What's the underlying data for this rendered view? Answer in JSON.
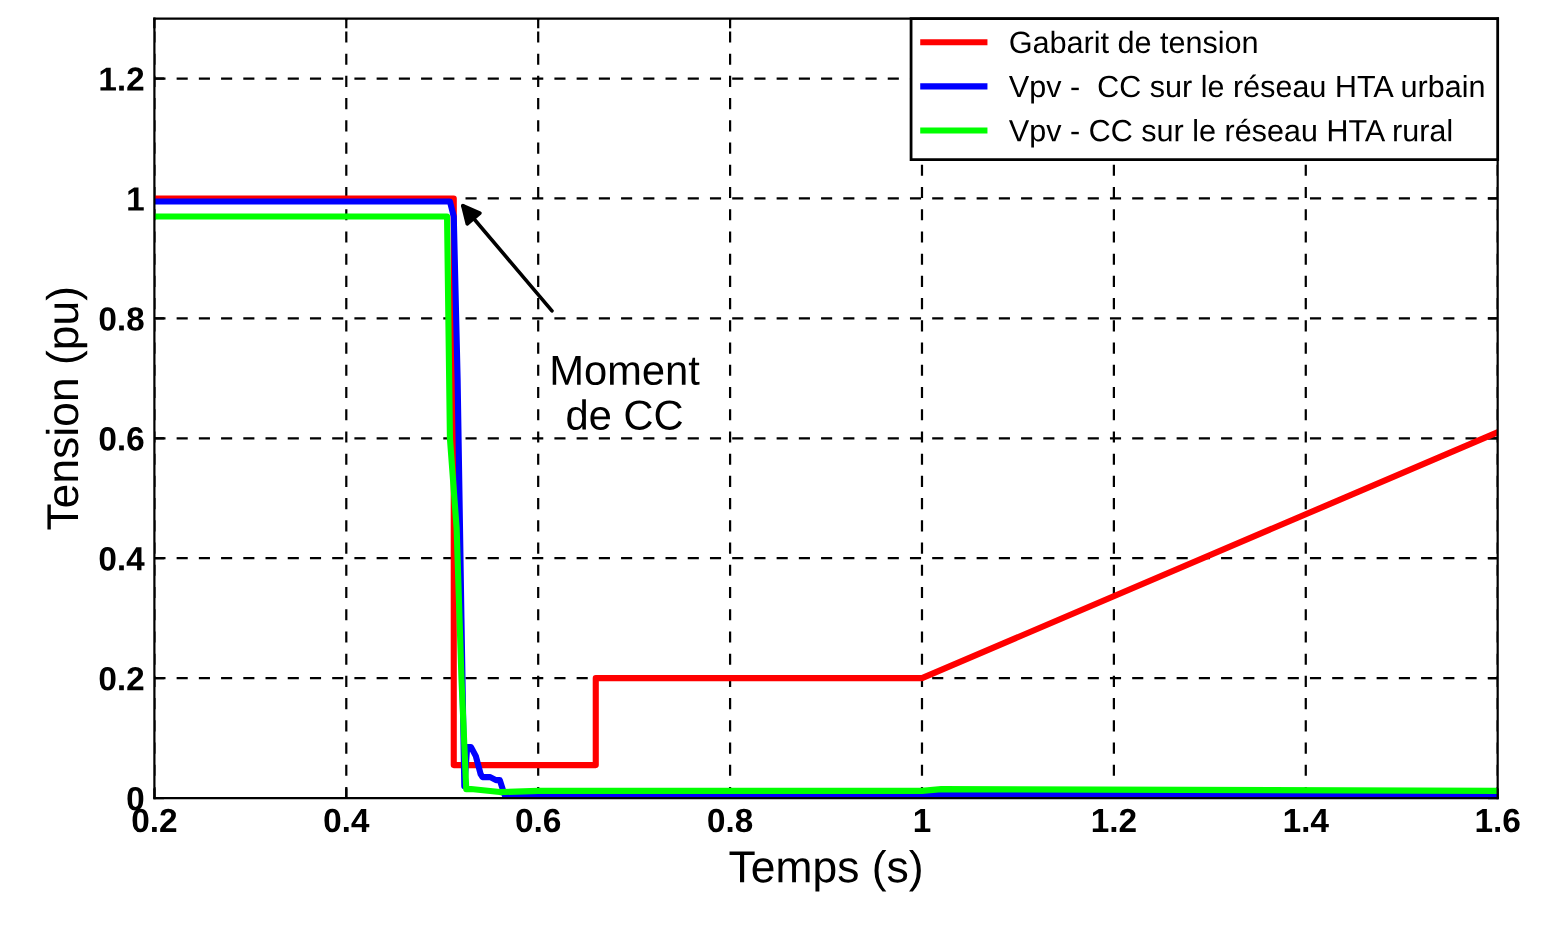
{
  "chart_data": {
    "type": "line",
    "xlabel": "Temps (s)",
    "ylabel": "Tension (pu)",
    "xlim": [
      0.2,
      1.6
    ],
    "ylim": [
      0,
      1.3
    ],
    "xticks": [
      0.2,
      0.4,
      0.6,
      0.8,
      1,
      1.2,
      1.4,
      1.6
    ],
    "yticks": [
      0,
      0.2,
      0.4,
      0.6,
      0.8,
      1,
      1.2
    ],
    "grid": true,
    "legend": "top right",
    "line_style": "solid",
    "marker": "none",
    "series": [
      {
        "name": "Gabarit de tension",
        "color": "#ff0000",
        "x": [
          0.2,
          0.512,
          0.512,
          0.66,
          0.66,
          1.0,
          1.6
        ],
        "values": [
          1,
          1,
          0.055,
          0.055,
          0.2,
          0.2,
          0.61
        ]
      },
      {
        "name": "Vpv -  CC sur le réseau HTA urbain",
        "color": "#0000ff",
        "x": [
          0.2,
          0.508,
          0.512,
          0.516,
          0.52,
          0.523,
          0.526,
          0.53,
          0.535,
          0.54,
          0.542,
          0.55,
          0.556,
          0.56,
          0.565,
          0.6,
          1.0,
          1.6
        ],
        "values": [
          0.995,
          0.995,
          0.97,
          0.7,
          0.3,
          0.02,
          0.085,
          0.085,
          0.07,
          0.04,
          0.035,
          0.035,
          0.03,
          0.03,
          0.005,
          0.005,
          0.005,
          0.005
        ]
      },
      {
        "name": "Vpv - CC sur le réseau HTA rural",
        "color": "#00ff00",
        "x": [
          0.2,
          0.505,
          0.508,
          0.515,
          0.52,
          0.525,
          0.53,
          0.56,
          0.6,
          1.0,
          1.02,
          1.6
        ],
        "values": [
          0.97,
          0.97,
          0.6,
          0.45,
          0.2,
          0.015,
          0.015,
          0.01,
          0.012,
          0.012,
          0.015,
          0.012
        ]
      }
    ],
    "annotations": [
      {
        "text": "Moment\nde CC",
        "x": 0.515,
        "y": 1.0
      }
    ]
  }
}
